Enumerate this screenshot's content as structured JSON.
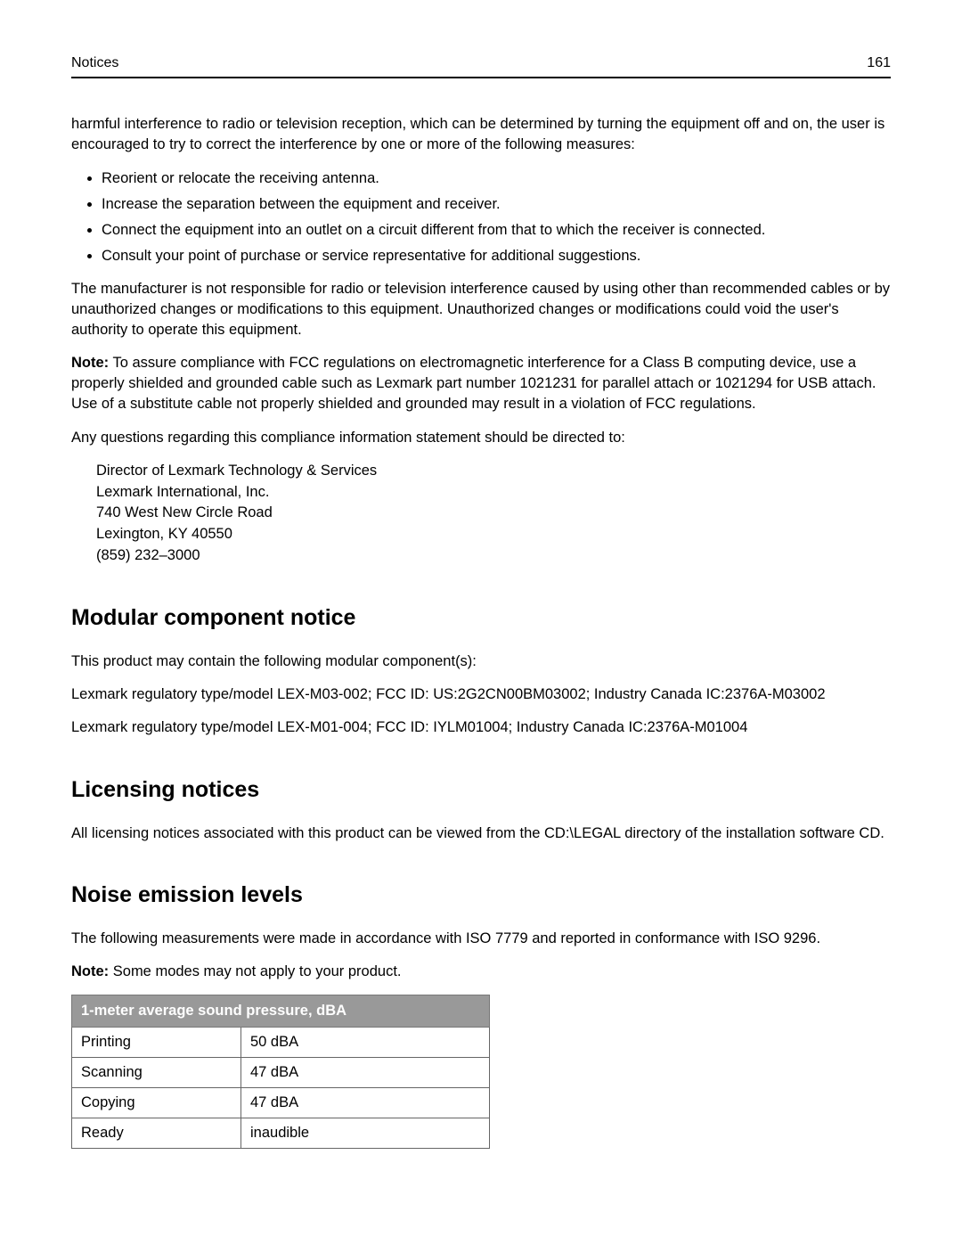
{
  "header": {
    "section": "Notices",
    "page": "161"
  },
  "intro_para": "harmful interference to radio or television reception, which can be determined by turning the equipment off and on, the user is encouraged to try to correct the interference by one or more of the following measures:",
  "bullets": [
    "Reorient or relocate the receiving antenna.",
    "Increase the separation between the equipment and receiver.",
    "Connect the equipment into an outlet on a circuit different from that to which the receiver is connected.",
    "Consult your point of purchase or service representative for additional suggestions."
  ],
  "para_after_bullets": "The manufacturer is not responsible for radio or television interference caused by using other than recommended cables or by unauthorized changes or modifications to this equipment. Unauthorized changes or modifications could void the user's authority to operate this equipment.",
  "note_label": "Note:",
  "note_text": " To assure compliance with FCC regulations on electromagnetic interference for a Class B computing device, use a properly shielded and grounded cable such as Lexmark part number 1021231 for parallel attach or 1021294 for USB attach. Use of a substitute cable not properly shielded and grounded may result in a violation of FCC regulations.",
  "questions_para": "Any questions regarding this compliance information statement should be directed to:",
  "address": [
    "Director of Lexmark Technology & Services",
    "Lexmark International, Inc.",
    "740 West New Circle Road",
    "Lexington, KY 40550",
    "(859) 232–3000"
  ],
  "modular": {
    "heading": "Modular component notice",
    "intro": "This product may contain the following modular component(s):",
    "line1": "Lexmark regulatory type/model LEX-M03-002; FCC ID: US:2G2CN00BM03002; Industry Canada IC:2376A-M03002",
    "line2": "Lexmark regulatory type/model LEX-M01-004; FCC ID: IYLM01004; Industry Canada IC:2376A-M01004"
  },
  "licensing": {
    "heading": "Licensing notices",
    "text": "All licensing notices associated with this product can be viewed from the CD:\\LEGAL directory of the installation software CD."
  },
  "noise": {
    "heading": "Noise emission levels",
    "intro": "The following measurements were made in accordance with ISO 7779 and reported in conformance with ISO 9296.",
    "note_label": "Note:",
    "note_text": " Some modes may not apply to your product.",
    "table_header": "1-meter average sound pressure, dBA",
    "rows": [
      {
        "mode": "Printing",
        "value": "50 dBA"
      },
      {
        "mode": "Scanning",
        "value": "47 dBA"
      },
      {
        "mode": "Copying",
        "value": "47 dBA"
      },
      {
        "mode": "Ready",
        "value": "inaudible"
      }
    ],
    "header_bg": "#999999",
    "header_fg": "#ffffff",
    "border_color": "#666666"
  }
}
